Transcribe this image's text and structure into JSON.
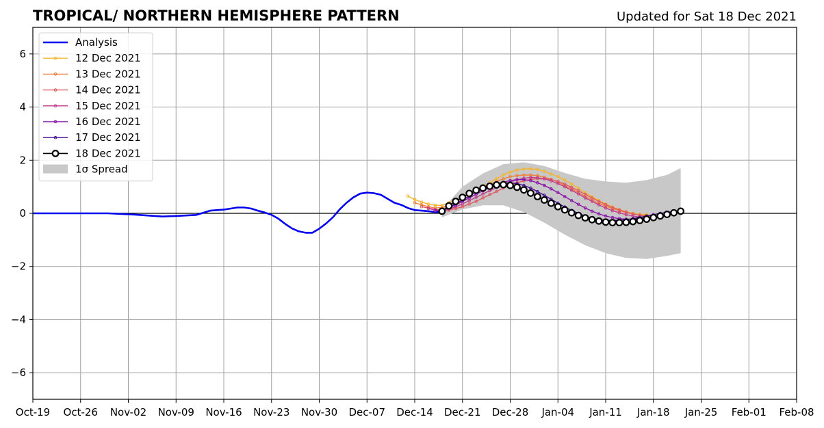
{
  "chart_data": {
    "type": "line",
    "title": "TROPICAL/ NORTHERN HEMISPHERE PATTERN",
    "subtitle": "Updated for Sat 18 Dec 2021",
    "xlabel": "",
    "ylabel": "",
    "xlim": [
      "2021-10-19",
      "2022-02-08"
    ],
    "ylim": [
      -7,
      7
    ],
    "x_ticks": [
      "Oct-19",
      "Oct-26",
      "Nov-02",
      "Nov-09",
      "Nov-16",
      "Nov-23",
      "Nov-30",
      "Dec-07",
      "Dec-14",
      "Dec-21",
      "Dec-28",
      "Jan-04",
      "Jan-11",
      "Jan-18",
      "Jan-25",
      "Feb-01",
      "Feb-08"
    ],
    "y_ticks": [
      -6,
      -4,
      -2,
      0,
      2,
      4,
      6
    ],
    "y_tick_labels": [
      "−6",
      "−4",
      "−2",
      "0",
      "2",
      "4",
      "6"
    ],
    "grid": true,
    "zero_line": 0,
    "legend_position": "top-left",
    "series": [
      {
        "name": "Analysis",
        "color": "#0000ee",
        "style": "analysis",
        "x": [
          "2021-10-19",
          "2021-10-22",
          "2021-10-26",
          "2021-10-30",
          "2021-11-03",
          "2021-11-07",
          "2021-11-09",
          "2021-11-12",
          "2021-11-14",
          "2021-11-16",
          "2021-11-18",
          "2021-11-19",
          "2021-11-20",
          "2021-11-21",
          "2021-11-22",
          "2021-11-23",
          "2021-11-24",
          "2021-11-25",
          "2021-11-26",
          "2021-11-27",
          "2021-11-28",
          "2021-11-29",
          "2021-11-30",
          "2021-12-01",
          "2021-12-02",
          "2021-12-03",
          "2021-12-04",
          "2021-12-05",
          "2021-12-06",
          "2021-12-07",
          "2021-12-08",
          "2021-12-09",
          "2021-12-10",
          "2021-12-11",
          "2021-12-12",
          "2021-12-13",
          "2021-12-14",
          "2021-12-15",
          "2021-12-16",
          "2021-12-17",
          "2021-12-18"
        ],
        "y": [
          0.0,
          0.0,
          0.0,
          0.0,
          -0.05,
          -0.12,
          -0.1,
          -0.06,
          0.1,
          0.14,
          0.22,
          0.22,
          0.18,
          0.1,
          0.03,
          -0.06,
          -0.2,
          -0.4,
          -0.57,
          -0.68,
          -0.73,
          -0.73,
          -0.58,
          -0.38,
          -0.15,
          0.15,
          0.4,
          0.6,
          0.74,
          0.78,
          0.76,
          0.7,
          0.55,
          0.4,
          0.32,
          0.2,
          0.12,
          0.1,
          0.08,
          0.05,
          0.05
        ]
      },
      {
        "name": "12 Dec 2021",
        "color": "#f4b530",
        "style": "forecast",
        "x": [
          "2021-12-13",
          "2021-12-14",
          "2021-12-15",
          "2021-12-16",
          "2021-12-17",
          "2021-12-18",
          "2021-12-19",
          "2021-12-20",
          "2021-12-21",
          "2021-12-22",
          "2021-12-23",
          "2021-12-24",
          "2021-12-25",
          "2021-12-26",
          "2021-12-27",
          "2021-12-28",
          "2021-12-29",
          "2021-12-30",
          "2021-12-31",
          "2022-01-01",
          "2022-01-02",
          "2022-01-03",
          "2022-01-04",
          "2022-01-05",
          "2022-01-06",
          "2022-01-07",
          "2022-01-08",
          "2022-01-09",
          "2022-01-10",
          "2022-01-11",
          "2022-01-12",
          "2022-01-13",
          "2022-01-14",
          "2022-01-15",
          "2022-01-16",
          "2022-01-17"
        ],
        "y": [
          0.65,
          0.52,
          0.42,
          0.35,
          0.3,
          0.3,
          0.4,
          0.5,
          0.58,
          0.7,
          0.85,
          1.0,
          1.15,
          1.3,
          1.45,
          1.55,
          1.63,
          1.67,
          1.68,
          1.65,
          1.58,
          1.48,
          1.38,
          1.25,
          1.1,
          0.95,
          0.78,
          0.62,
          0.48,
          0.35,
          0.24,
          0.14,
          0.06,
          0.0,
          -0.04,
          -0.05
        ]
      },
      {
        "name": "13 Dec 2021",
        "color": "#f07f3a",
        "style": "forecast",
        "x": [
          "2021-12-14",
          "2021-12-15",
          "2021-12-16",
          "2021-12-17",
          "2021-12-18",
          "2021-12-19",
          "2021-12-20",
          "2021-12-21",
          "2021-12-22",
          "2021-12-23",
          "2021-12-24",
          "2021-12-25",
          "2021-12-26",
          "2021-12-27",
          "2021-12-28",
          "2021-12-29",
          "2021-12-30",
          "2021-12-31",
          "2022-01-01",
          "2022-01-02",
          "2022-01-03",
          "2022-01-04",
          "2022-01-05",
          "2022-01-06",
          "2022-01-07",
          "2022-01-08",
          "2022-01-09",
          "2022-01-10",
          "2022-01-11",
          "2022-01-12",
          "2022-01-13",
          "2022-01-14",
          "2022-01-15",
          "2022-01-16",
          "2022-01-17",
          "2022-01-18"
        ],
        "y": [
          0.4,
          0.32,
          0.25,
          0.2,
          0.22,
          0.3,
          0.4,
          0.52,
          0.65,
          0.8,
          0.95,
          1.08,
          1.2,
          1.3,
          1.38,
          1.42,
          1.44,
          1.44,
          1.42,
          1.36,
          1.28,
          1.18,
          1.05,
          0.92,
          0.78,
          0.64,
          0.5,
          0.38,
          0.27,
          0.18,
          0.1,
          0.03,
          -0.02,
          -0.06,
          -0.08,
          -0.08
        ]
      },
      {
        "name": "14 Dec 2021",
        "color": "#e05a62",
        "style": "forecast",
        "x": [
          "2021-12-15",
          "2021-12-16",
          "2021-12-17",
          "2021-12-18",
          "2021-12-19",
          "2021-12-20",
          "2021-12-21",
          "2021-12-22",
          "2021-12-23",
          "2021-12-24",
          "2021-12-25",
          "2021-12-26",
          "2021-12-27",
          "2021-12-28",
          "2021-12-29",
          "2021-12-30",
          "2021-12-31",
          "2022-01-01",
          "2022-01-02",
          "2022-01-03",
          "2022-01-04",
          "2022-01-05",
          "2022-01-06",
          "2022-01-07",
          "2022-01-08",
          "2022-01-09",
          "2022-01-10",
          "2022-01-11",
          "2022-01-12",
          "2022-01-13",
          "2022-01-14",
          "2022-01-15",
          "2022-01-16",
          "2022-01-17",
          "2022-01-18",
          "2022-01-19"
        ],
        "y": [
          0.25,
          0.2,
          0.15,
          0.12,
          0.12,
          0.18,
          0.25,
          0.35,
          0.45,
          0.58,
          0.7,
          0.82,
          0.95,
          1.05,
          1.15,
          1.22,
          1.28,
          1.3,
          1.3,
          1.27,
          1.2,
          1.1,
          0.98,
          0.85,
          0.72,
          0.58,
          0.45,
          0.33,
          0.22,
          0.13,
          0.05,
          -0.02,
          -0.07,
          -0.1,
          -0.12,
          -0.12
        ]
      },
      {
        "name": "15 Dec 2021",
        "color": "#c13d8c",
        "style": "forecast",
        "x": [
          "2021-12-16",
          "2021-12-17",
          "2021-12-18",
          "2021-12-19",
          "2021-12-20",
          "2021-12-21",
          "2021-12-22",
          "2021-12-23",
          "2021-12-24",
          "2021-12-25",
          "2021-12-26",
          "2021-12-27",
          "2021-12-28",
          "2021-12-29",
          "2021-12-30",
          "2021-12-31",
          "2022-01-01",
          "2022-01-02",
          "2022-01-03",
          "2022-01-04",
          "2022-01-05",
          "2022-01-06",
          "2022-01-07",
          "2022-01-08",
          "2022-01-09",
          "2022-01-10",
          "2022-01-11",
          "2022-01-12",
          "2022-01-13",
          "2022-01-14",
          "2022-01-15",
          "2022-01-16",
          "2022-01-17",
          "2022-01-18",
          "2022-01-19",
          "2022-01-20"
        ],
        "y": [
          0.18,
          0.12,
          0.1,
          0.15,
          0.25,
          0.35,
          0.48,
          0.6,
          0.73,
          0.85,
          0.97,
          1.08,
          1.18,
          1.26,
          1.32,
          1.35,
          1.34,
          1.3,
          1.22,
          1.12,
          1.0,
          0.87,
          0.73,
          0.58,
          0.45,
          0.32,
          0.2,
          0.1,
          0.02,
          -0.05,
          -0.1,
          -0.14,
          -0.16,
          -0.16,
          -0.14,
          -0.1
        ]
      },
      {
        "name": "16 Dec 2021",
        "color": "#8a14a8",
        "style": "forecast",
        "x": [
          "2021-12-17",
          "2021-12-18",
          "2021-12-19",
          "2021-12-20",
          "2021-12-21",
          "2021-12-22",
          "2021-12-23",
          "2021-12-24",
          "2021-12-25",
          "2021-12-26",
          "2021-12-27",
          "2021-12-28",
          "2021-12-29",
          "2021-12-30",
          "2021-12-31",
          "2022-01-01",
          "2022-01-02",
          "2022-01-03",
          "2022-01-04",
          "2022-01-05",
          "2022-01-06",
          "2022-01-07",
          "2022-01-08",
          "2022-01-09",
          "2022-01-10",
          "2022-01-11",
          "2022-01-12",
          "2022-01-13",
          "2022-01-14",
          "2022-01-15",
          "2022-01-16",
          "2022-01-17",
          "2022-01-18",
          "2022-01-19",
          "2022-01-20",
          "2022-01-21"
        ],
        "y": [
          0.1,
          0.12,
          0.2,
          0.32,
          0.45,
          0.58,
          0.72,
          0.85,
          0.97,
          1.08,
          1.17,
          1.23,
          1.27,
          1.27,
          1.23,
          1.15,
          1.05,
          0.92,
          0.78,
          0.63,
          0.48,
          0.34,
          0.2,
          0.08,
          -0.02,
          -0.1,
          -0.16,
          -0.2,
          -0.22,
          -0.22,
          -0.2,
          -0.17,
          -0.13,
          -0.08,
          -0.03,
          0.02
        ]
      },
      {
        "name": "17 Dec 2021",
        "color": "#4a0c94",
        "style": "forecast",
        "x": [
          "2021-12-18",
          "2021-12-19",
          "2021-12-20",
          "2021-12-21",
          "2021-12-22",
          "2021-12-23",
          "2021-12-24",
          "2021-12-25",
          "2021-12-26",
          "2021-12-27",
          "2021-12-28",
          "2021-12-29",
          "2021-12-30",
          "2021-12-31",
          "2022-01-01",
          "2022-01-02",
          "2022-01-03",
          "2022-01-04",
          "2022-01-05",
          "2022-01-06",
          "2022-01-07",
          "2022-01-08",
          "2022-01-09",
          "2022-01-10",
          "2022-01-11",
          "2022-01-12",
          "2022-01-13",
          "2022-01-14",
          "2022-01-15",
          "2022-01-16",
          "2022-01-17",
          "2022-01-18",
          "2022-01-19",
          "2022-01-20",
          "2022-01-21",
          "2022-01-22"
        ],
        "y": [
          0.12,
          0.22,
          0.36,
          0.5,
          0.65,
          0.8,
          0.93,
          1.03,
          1.1,
          1.14,
          1.15,
          1.12,
          1.05,
          0.95,
          0.82,
          0.68,
          0.53,
          0.38,
          0.24,
          0.11,
          0.0,
          -0.1,
          -0.18,
          -0.23,
          -0.26,
          -0.27,
          -0.26,
          -0.24,
          -0.2,
          -0.15,
          -0.1,
          -0.05,
          0.0,
          0.04,
          0.07,
          0.08
        ]
      },
      {
        "name": "18 Dec 2021",
        "color": "#000000",
        "style": "current",
        "x": [
          "2021-12-18",
          "2021-12-19",
          "2021-12-20",
          "2021-12-21",
          "2021-12-22",
          "2021-12-23",
          "2021-12-24",
          "2021-12-25",
          "2021-12-26",
          "2021-12-27",
          "2021-12-28",
          "2021-12-29",
          "2021-12-30",
          "2021-12-31",
          "2022-01-01",
          "2022-01-02",
          "2022-01-03",
          "2022-01-04",
          "2022-01-05",
          "2022-01-06",
          "2022-01-07",
          "2022-01-08",
          "2022-01-09",
          "2022-01-10",
          "2022-01-11",
          "2022-01-12",
          "2022-01-13",
          "2022-01-14",
          "2022-01-15",
          "2022-01-16",
          "2022-01-17",
          "2022-01-18",
          "2022-01-19",
          "2022-01-20",
          "2022-01-21",
          "2022-01-22"
        ],
        "y": [
          0.08,
          0.28,
          0.45,
          0.6,
          0.75,
          0.87,
          0.95,
          1.02,
          1.07,
          1.08,
          1.05,
          0.98,
          0.88,
          0.76,
          0.63,
          0.5,
          0.38,
          0.25,
          0.13,
          0.02,
          -0.08,
          -0.17,
          -0.24,
          -0.29,
          -0.33,
          -0.35,
          -0.35,
          -0.34,
          -0.31,
          -0.27,
          -0.22,
          -0.16,
          -0.1,
          -0.04,
          0.02,
          0.08
        ]
      }
    ],
    "spread": {
      "name": "1σ Spread",
      "color": "#c8c8c8",
      "x": [
        "2021-12-18",
        "2021-12-21",
        "2021-12-24",
        "2021-12-27",
        "2021-12-30",
        "2022-01-02",
        "2022-01-05",
        "2022-01-08",
        "2022-01-11",
        "2022-01-14",
        "2022-01-17",
        "2022-01-20",
        "2022-01-22"
      ],
      "upper": [
        0.15,
        1.0,
        1.5,
        1.85,
        1.92,
        1.78,
        1.52,
        1.3,
        1.2,
        1.15,
        1.25,
        1.45,
        1.7
      ],
      "lower": [
        -0.15,
        0.15,
        0.3,
        0.3,
        0.05,
        -0.35,
        -0.8,
        -1.2,
        -1.5,
        -1.68,
        -1.72,
        -1.6,
        -1.5
      ]
    }
  }
}
